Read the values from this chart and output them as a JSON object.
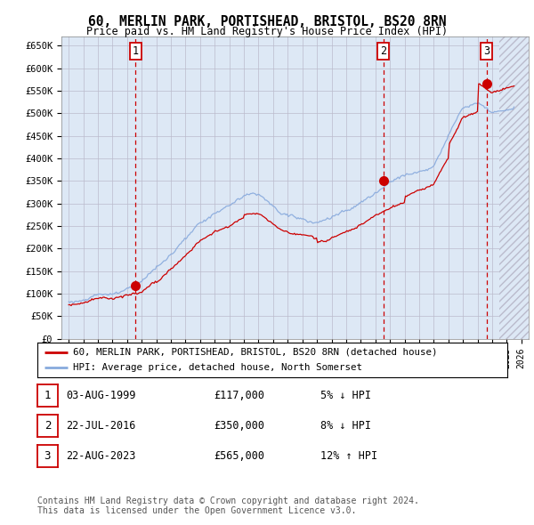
{
  "title": "60, MERLIN PARK, PORTISHEAD, BRISTOL, BS20 8RN",
  "subtitle": "Price paid vs. HM Land Registry's House Price Index (HPI)",
  "hpi_color": "#88aadd",
  "price_color": "#cc0000",
  "plot_bg_color": "#dde8f5",
  "grid_color": "#bbbbcc",
  "ylim": [
    0,
    670000
  ],
  "yticks": [
    0,
    50000,
    100000,
    150000,
    200000,
    250000,
    300000,
    350000,
    400000,
    450000,
    500000,
    550000,
    600000,
    650000
  ],
  "ytick_labels": [
    "£0",
    "£50K",
    "£100K",
    "£150K",
    "£200K",
    "£250K",
    "£300K",
    "£350K",
    "£400K",
    "£450K",
    "£500K",
    "£550K",
    "£600K",
    "£650K"
  ],
  "xlim_start": 1994.5,
  "xlim_end": 2026.5,
  "sale_points": [
    {
      "year": 1999.58,
      "price": 117000,
      "label": "1"
    },
    {
      "year": 2016.55,
      "price": 350000,
      "label": "2"
    },
    {
      "year": 2023.63,
      "price": 565000,
      "label": "3"
    }
  ],
  "legend_line1": "60, MERLIN PARK, PORTISHEAD, BRISTOL, BS20 8RN (detached house)",
  "legend_line2": "HPI: Average price, detached house, North Somerset",
  "table_rows": [
    {
      "num": "1",
      "date": "03-AUG-1999",
      "price": "£117,000",
      "hpi": "5% ↓ HPI"
    },
    {
      "num": "2",
      "date": "22-JUL-2016",
      "price": "£350,000",
      "hpi": "8% ↓ HPI"
    },
    {
      "num": "3",
      "date": "22-AUG-2023",
      "price": "£565,000",
      "hpi": "12% ↑ HPI"
    }
  ],
  "footer": "Contains HM Land Registry data © Crown copyright and database right 2024.\nThis data is licensed under the Open Government Licence v3.0.",
  "vline_color": "#cc0000",
  "hatch_start": 2024.5
}
